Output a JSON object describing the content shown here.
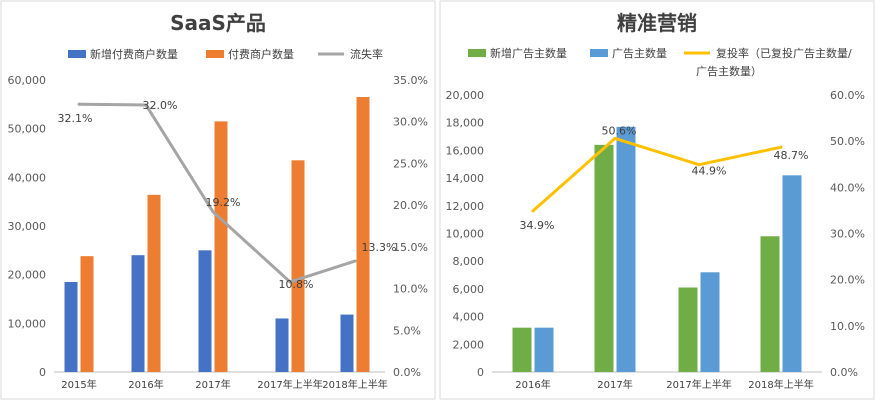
{
  "chart_data": [
    {
      "type": "bar+line",
      "title": "SaaS产品",
      "categories": [
        "2015年",
        "2016年",
        "2017年",
        "2017年上半年",
        "2018年上半年"
      ],
      "series": [
        {
          "name": "新增付费商户数量",
          "kind": "bar",
          "axis": "left",
          "color": "#4472C4",
          "values": [
            18500,
            24000,
            25000,
            11000,
            11800
          ]
        },
        {
          "name": "付费商户数量",
          "kind": "bar",
          "axis": "left",
          "color": "#ED7D31",
          "values": [
            23800,
            36400,
            51500,
            43500,
            56500
          ]
        },
        {
          "name": "流失率",
          "kind": "line",
          "axis": "right",
          "color": "#A5A5A5",
          "values": [
            32.1,
            32.0,
            19.2,
            10.8,
            13.3
          ],
          "labels": [
            "32.1%",
            "32.0%",
            "19.2%",
            "10.8%",
            "13.3%"
          ]
        }
      ],
      "ylim_left": [
        0,
        60000
      ],
      "ylim_right": [
        0,
        35
      ],
      "ticks_left": [
        "0",
        "10,000",
        "20,000",
        "30,000",
        "40,000",
        "50,000",
        "60,000"
      ],
      "ticks_right": [
        "0.0%",
        "5.0%",
        "10.0%",
        "15.0%",
        "20.0%",
        "25.0%",
        "30.0%",
        "35.0%"
      ],
      "legend": "top"
    },
    {
      "type": "bar+line",
      "title": "精准营销",
      "categories": [
        "2016年",
        "2017年",
        "2017年上半年",
        "2018年上半年"
      ],
      "series": [
        {
          "name": "新增广告主数量",
          "kind": "bar",
          "axis": "left",
          "color": "#70AD47",
          "values": [
            3200,
            16400,
            6100,
            9800
          ]
        },
        {
          "name": "广告主数量",
          "kind": "bar",
          "axis": "left",
          "color": "#5B9BD5",
          "values": [
            3200,
            17700,
            7200,
            14200
          ]
        },
        {
          "name": "复投率（已复投广告主数量/广告主数量）",
          "kind": "line",
          "axis": "right",
          "color": "#FFC000",
          "values": [
            34.9,
            50.6,
            44.9,
            48.7
          ],
          "labels": [
            "34.9%",
            "50.6%",
            "44.9%",
            "48.7%"
          ]
        }
      ],
      "ylim_left": [
        0,
        20000
      ],
      "ylim_right": [
        0,
        60
      ],
      "ticks_left": [
        "0",
        "2,000",
        "4,000",
        "6,000",
        "8,000",
        "10,000",
        "12,000",
        "14,000",
        "16,000",
        "18,000",
        "20,000"
      ],
      "ticks_right": [
        "0.0%",
        "10.0%",
        "20.0%",
        "30.0%",
        "40.0%",
        "50.0%",
        "60.0%"
      ],
      "legend": "top",
      "legend_line_text": [
        "复投率（已复投广告主数量/",
        "广告主数量）"
      ]
    }
  ]
}
